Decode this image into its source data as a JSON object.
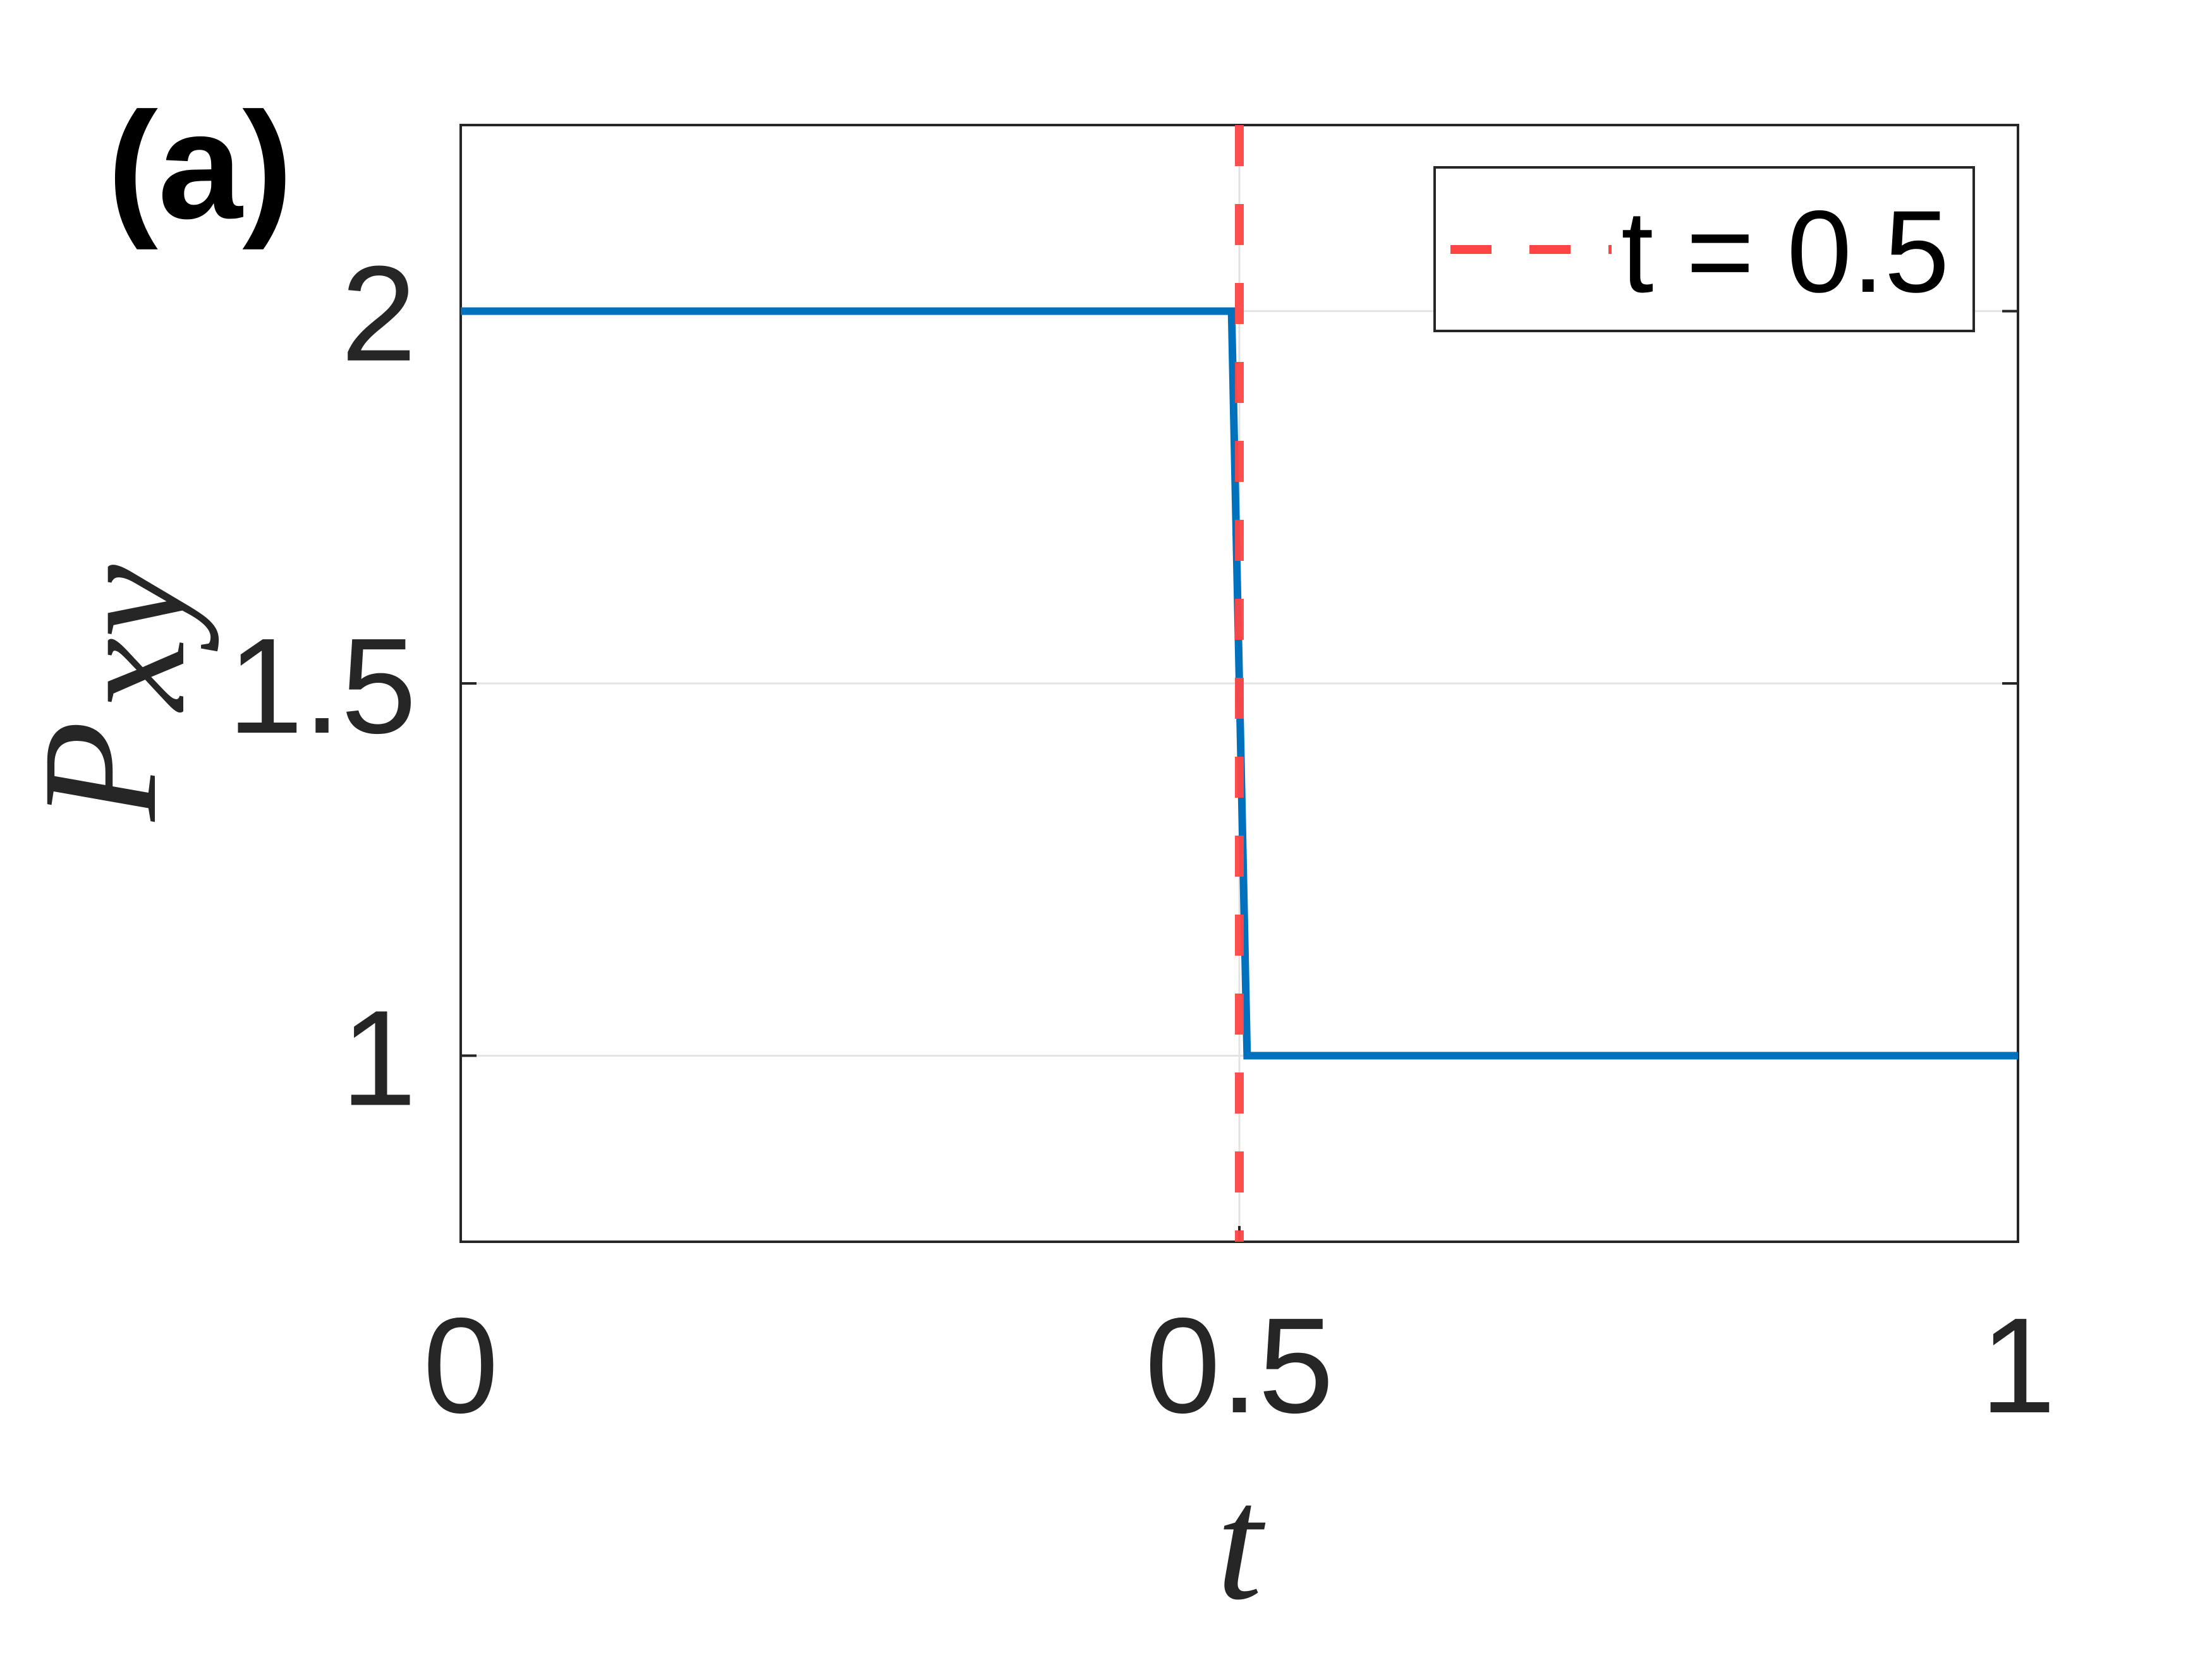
{
  "chart_data": {
    "type": "line",
    "panel_label": "(a)",
    "xlabel": "t",
    "ylabel_main": "P",
    "ylabel_sub": "xy",
    "xlim": [
      0,
      1
    ],
    "ylim": [
      0.75,
      2.25
    ],
    "xticks": [
      0,
      0.5,
      1
    ],
    "xtick_labels": [
      "0",
      "0.5",
      "1"
    ],
    "yticks": [
      1,
      1.5,
      2
    ],
    "ytick_labels": [
      "1",
      "1.5",
      "2"
    ],
    "grid": true,
    "series": [
      {
        "name": "P_xy",
        "color": "#0072BD",
        "x": [
          0,
          0.495,
          0.505,
          1
        ],
        "y": [
          2,
          2,
          1,
          1
        ]
      }
    ],
    "vline": {
      "x": 0.5,
      "color": "#FF4444",
      "style": "dashed",
      "legend": "t = 0.5"
    },
    "legend_position": "top-right"
  }
}
